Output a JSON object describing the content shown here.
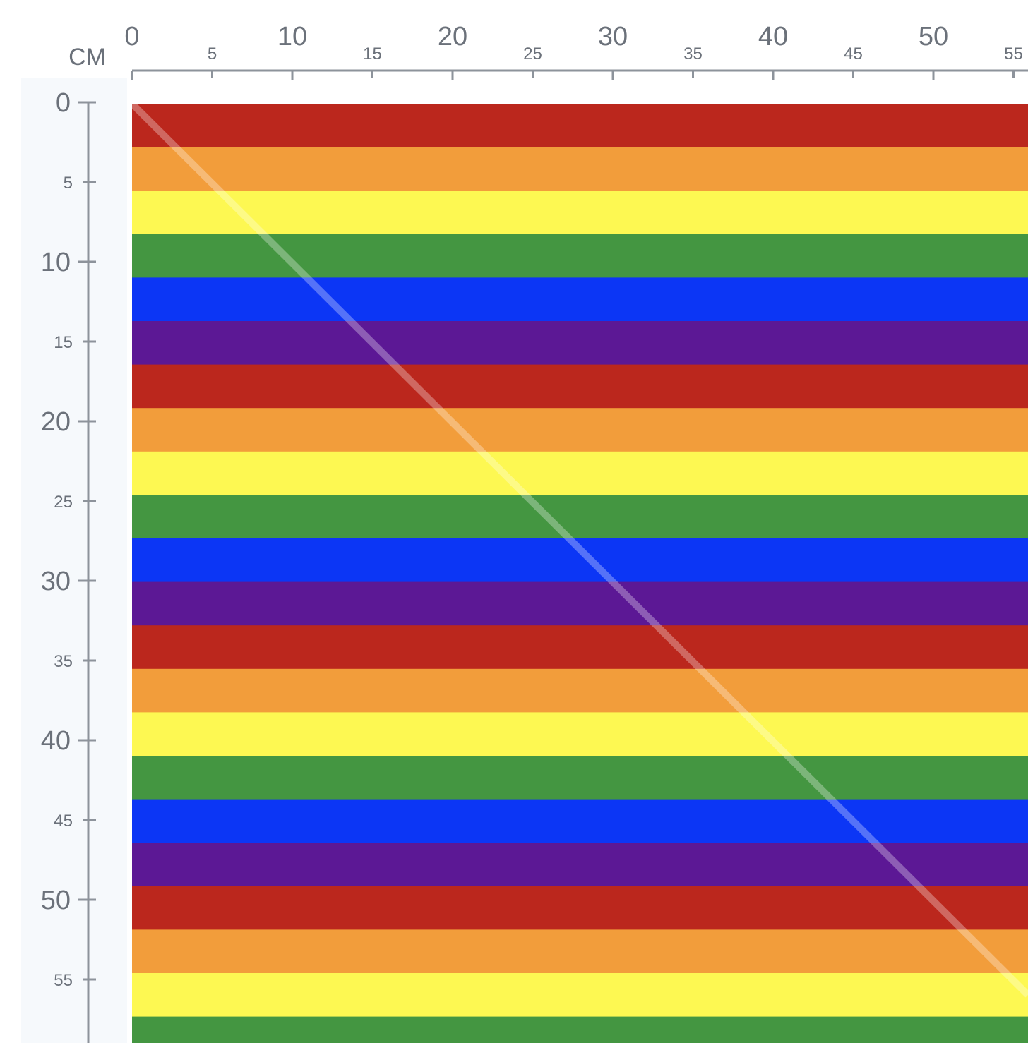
{
  "unit": "CM",
  "top_ruler": {
    "major": [
      0,
      10,
      20,
      30,
      40,
      50
    ],
    "minor": [
      5,
      15,
      25,
      35,
      45,
      55
    ]
  },
  "left_ruler": {
    "major": [
      0,
      10,
      20,
      30,
      40,
      50
    ],
    "minor": [
      5,
      15,
      25,
      35,
      45,
      55
    ]
  }
}
